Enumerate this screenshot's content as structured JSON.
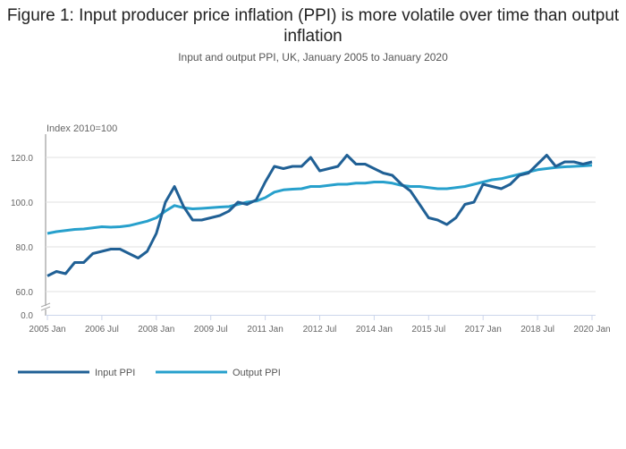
{
  "title": "Figure 1: Input producer price inflation (PPI) is more volatile over time than output inflation",
  "subtitle": "Input and output PPI, UK, January 2005 to January 2020",
  "chart_data": {
    "type": "line",
    "title": "Figure 1: Input producer price inflation (PPI) is more volatile over time than output inflation",
    "subtitle": "Input and output PPI, UK, January 2005 to January 2020",
    "ylabel": "Index 2010=100",
    "xlabel": "",
    "ylim": [
      0,
      130
    ],
    "y_ticks": [
      0,
      60,
      80,
      100,
      120
    ],
    "y_tick_labels": [
      "0.0",
      "60.0",
      "80.0",
      "100.0",
      "120.0"
    ],
    "y_axis_break": true,
    "x_range": [
      2005.0,
      2020.0
    ],
    "x_ticks": [
      2005.0,
      2006.5,
      2008.0,
      2009.5,
      2011.0,
      2012.5,
      2014.0,
      2015.5,
      2017.0,
      2018.5,
      2020.0
    ],
    "x_tick_labels": [
      "2005 Jan",
      "2006 Jul",
      "2008 Jan",
      "2009 Jul",
      "2011 Jan",
      "2012 Jul",
      "2014 Jan",
      "2015 Jul",
      "2017 Jan",
      "2018 Jul",
      "2020 Jan"
    ],
    "grid": true,
    "legend_position": "bottom-left",
    "x_step_years": 0.25,
    "series": [
      {
        "name": "Input PPI",
        "color": "#206095",
        "values": [
          67,
          69,
          68,
          73,
          73,
          77,
          78,
          79,
          79,
          77,
          75,
          78,
          86,
          100,
          107,
          98,
          92,
          92,
          93,
          94,
          96,
          100,
          99,
          101,
          109,
          116,
          115,
          116,
          116,
          120,
          114,
          115,
          116,
          121,
          117,
          117,
          115,
          113,
          112,
          108,
          105,
          99,
          93,
          92,
          90,
          93,
          99,
          100,
          108,
          107,
          106,
          108,
          112,
          113,
          117,
          121,
          116,
          118,
          118,
          117,
          118
        ]
      },
      {
        "name": "Output PPI",
        "color": "#27a0cc",
        "values": [
          86,
          86.8,
          87.3,
          87.8,
          88,
          88.5,
          89,
          88.8,
          89,
          89.5,
          90.5,
          91.5,
          93,
          96,
          98.5,
          97.5,
          97,
          97.2,
          97.5,
          97.8,
          98,
          99,
          100,
          100.5,
          102,
          104.5,
          105.5,
          105.8,
          106,
          107,
          107,
          107.5,
          108,
          108,
          108.5,
          108.5,
          109,
          109,
          108.5,
          107.5,
          107,
          107,
          106.5,
          106,
          106,
          106.5,
          107,
          108,
          109,
          110,
          110.5,
          111.5,
          112.5,
          113.5,
          114.5,
          115,
          115.5,
          115.8,
          116,
          116.2,
          116.5
        ]
      }
    ]
  }
}
